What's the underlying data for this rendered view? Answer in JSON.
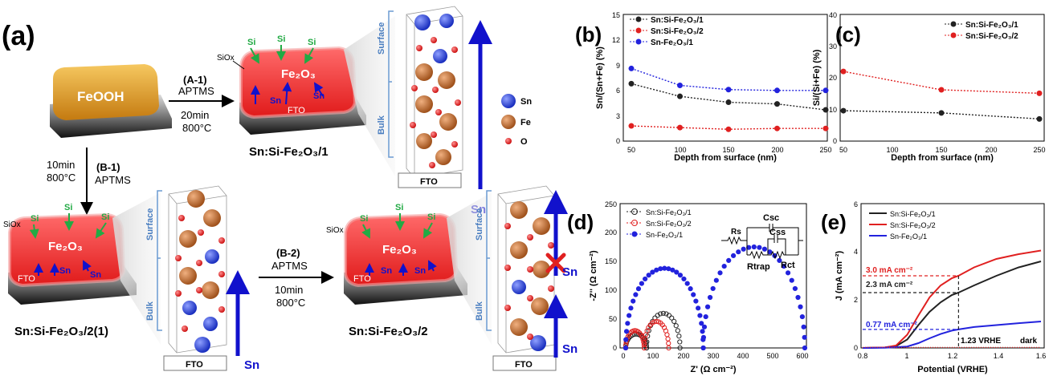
{
  "panel_a": {
    "label": "(a)",
    "feooh": "FeOOH",
    "fto": "FTO",
    "fe2o3": "Fe₂O₃",
    "si": "Si",
    "sn": "Sn",
    "siox": "SiOx",
    "step_a1": {
      "code": "(A-1)",
      "reagent": "APTMS",
      "time": "20min",
      "temp": "800°C"
    },
    "step_b1": {
      "code": "(B-1)",
      "reagent": "APTMS",
      "time": "10min",
      "temp": "800°C"
    },
    "step_b2": {
      "code": "(B-2)",
      "reagent": "APTMS",
      "time": "10min",
      "temp": "800°C"
    },
    "sample_1": "Sn:Si-Fe₂O₃/1",
    "sample_21": "Sn:Si-Fe₂O₃/2(1)",
    "sample_2": "Sn:Si-Fe₂O₃/2",
    "surface": "Surface",
    "bulk": "Bulk",
    "legend": [
      {
        "symbol": "Sn",
        "color": "#2244cc"
      },
      {
        "symbol": "Fe",
        "color": "#c06a2a"
      },
      {
        "symbol": "O",
        "color": "#e03030"
      }
    ]
  },
  "colors": {
    "black_series": "#222222",
    "red_series": "#e02020",
    "blue_series": "#2222dd",
    "film_red": "#ee2a2a",
    "feooh": "#e8a020",
    "arrow_blue": "#1111cc",
    "arrow_green": "#22aa44"
  },
  "chart_data": [
    {
      "panel": "(b)",
      "type": "line",
      "xlabel": "Depth from surface (nm)",
      "ylabel": "Sn/(Sn+Fe) (%)",
      "xlim": [
        50,
        250
      ],
      "ylim": [
        0,
        15
      ],
      "xticks": [
        50,
        100,
        150,
        200,
        250
      ],
      "yticks": [
        0,
        3,
        6,
        9,
        12,
        15
      ],
      "legend_position": "top-left",
      "series": [
        {
          "name": "Sn:Si-Fe₂O₃/1",
          "color": "#222222",
          "x": [
            50,
            100,
            150,
            200,
            250
          ],
          "y": [
            6.8,
            5.3,
            4.6,
            4.4,
            3.7
          ]
        },
        {
          "name": "Sn:Si-Fe₂O₃/2",
          "color": "#e02020",
          "x": [
            50,
            100,
            150,
            200,
            250
          ],
          "y": [
            1.8,
            1.6,
            1.4,
            1.5,
            1.5
          ]
        },
        {
          "name": "Sn-Fe₂O₃/1",
          "color": "#2222dd",
          "x": [
            50,
            100,
            150,
            200,
            250
          ],
          "y": [
            8.6,
            6.6,
            6.1,
            6.0,
            6.0
          ]
        }
      ]
    },
    {
      "panel": "(c)",
      "type": "line",
      "xlabel": "Depth from surface (nm)",
      "ylabel": "Si/(Si+Fe) (%)",
      "xlim": [
        50,
        250
      ],
      "ylim": [
        0,
        40
      ],
      "xticks": [
        50,
        100,
        150,
        200,
        250
      ],
      "yticks": [
        0,
        10,
        20,
        30,
        40
      ],
      "legend_position": "top-right",
      "series": [
        {
          "name": "Sn:Si-Fe₂O₃/1",
          "color": "#222222",
          "x": [
            50,
            150,
            250
          ],
          "y": [
            9.6,
            8.9,
            7.0
          ]
        },
        {
          "name": "Sn:Si-Fe₂O₃/2",
          "color": "#e02020",
          "x": [
            50,
            150,
            250
          ],
          "y": [
            22.0,
            16.2,
            15.1
          ]
        }
      ]
    },
    {
      "panel": "(d)",
      "type": "scatter",
      "xlabel": "Z' (Ω cm⁻²)",
      "ylabel": "-Z'' (Ω cm⁻²)",
      "xlim": [
        0,
        600
      ],
      "ylim": [
        0,
        250
      ],
      "xticks": [
        0,
        100,
        200,
        300,
        400,
        500,
        600
      ],
      "yticks": [
        0,
        50,
        100,
        150,
        200,
        250
      ],
      "legend_position": "top-left",
      "circuit": {
        "rs": "Rs",
        "csc": "Csc",
        "css": "Css",
        "rtrap": "Rtrap",
        "rct": "Rct"
      },
      "series": [
        {
          "name": "Sn:Si-Fe₂O₃/1",
          "color": "#222222",
          "shape": "nyquist",
          "rs": 8,
          "arcs": [
            [
              70,
              24
            ],
            [
              112,
              60
            ]
          ]
        },
        {
          "name": "Sn:Si-Fe₂O₃/2",
          "color": "#e02020",
          "shape": "nyquist",
          "rs": 8,
          "arcs": [
            [
              62,
              30
            ],
            [
              82,
              46
            ]
          ]
        },
        {
          "name": "Sn-Fe₂O₃/1",
          "color": "#2222dd",
          "shape": "nyquist",
          "rs": 8,
          "arcs": [
            [
              260,
              138
            ],
            [
              340,
              175
            ]
          ]
        }
      ]
    },
    {
      "panel": "(e)",
      "type": "line",
      "xlabel": "Potential (VRHE)",
      "ylabel": "J (mA cm⁻²)",
      "xlim": [
        0.8,
        1.6
      ],
      "ylim": [
        0,
        6
      ],
      "xticks": [
        0.8,
        1.0,
        1.2,
        1.4,
        1.6
      ],
      "yticks": [
        0,
        2,
        4,
        6
      ],
      "legend_position": "top-left",
      "series": [
        {
          "name": "Sn:Si-Fe₂O₃/1",
          "color": "#222222",
          "x": [
            0.8,
            0.9,
            0.95,
            1.0,
            1.05,
            1.1,
            1.15,
            1.2,
            1.23,
            1.3,
            1.4,
            1.5,
            1.6
          ],
          "y": [
            0,
            0.02,
            0.08,
            0.35,
            0.95,
            1.5,
            1.9,
            2.2,
            2.3,
            2.6,
            3.0,
            3.35,
            3.6
          ]
        },
        {
          "name": "Sn:Si-Fe₂O₃/2",
          "color": "#e02020",
          "x": [
            0.8,
            0.9,
            0.95,
            1.0,
            1.05,
            1.1,
            1.15,
            1.2,
            1.23,
            1.3,
            1.4,
            1.5,
            1.6
          ],
          "y": [
            0,
            0.02,
            0.1,
            0.55,
            1.35,
            2.1,
            2.6,
            2.9,
            3.0,
            3.35,
            3.7,
            3.9,
            4.05
          ]
        },
        {
          "name": "Sn-Fe₂O₃/1",
          "color": "#2222dd",
          "x": [
            0.8,
            0.9,
            1.0,
            1.05,
            1.1,
            1.15,
            1.2,
            1.23,
            1.3,
            1.4,
            1.5,
            1.6
          ],
          "y": [
            0,
            0.01,
            0.06,
            0.2,
            0.4,
            0.58,
            0.72,
            0.77,
            0.87,
            0.95,
            1.03,
            1.1
          ]
        },
        {
          "name": "dark",
          "color": "#e02020",
          "style": "dotted",
          "x": [
            0.8,
            1.6
          ],
          "y": [
            0.02,
            0.02
          ]
        }
      ],
      "annotations": {
        "red": "3.0 mA cm⁻²",
        "black": "2.3 mA cm⁻²",
        "blue": "0.77 mA cm⁻²",
        "vline": "1.23 VRHE",
        "dark": "dark",
        "vline_x": 1.23,
        "red_y": 3.0,
        "black_y": 2.3,
        "blue_y": 0.77
      }
    }
  ]
}
